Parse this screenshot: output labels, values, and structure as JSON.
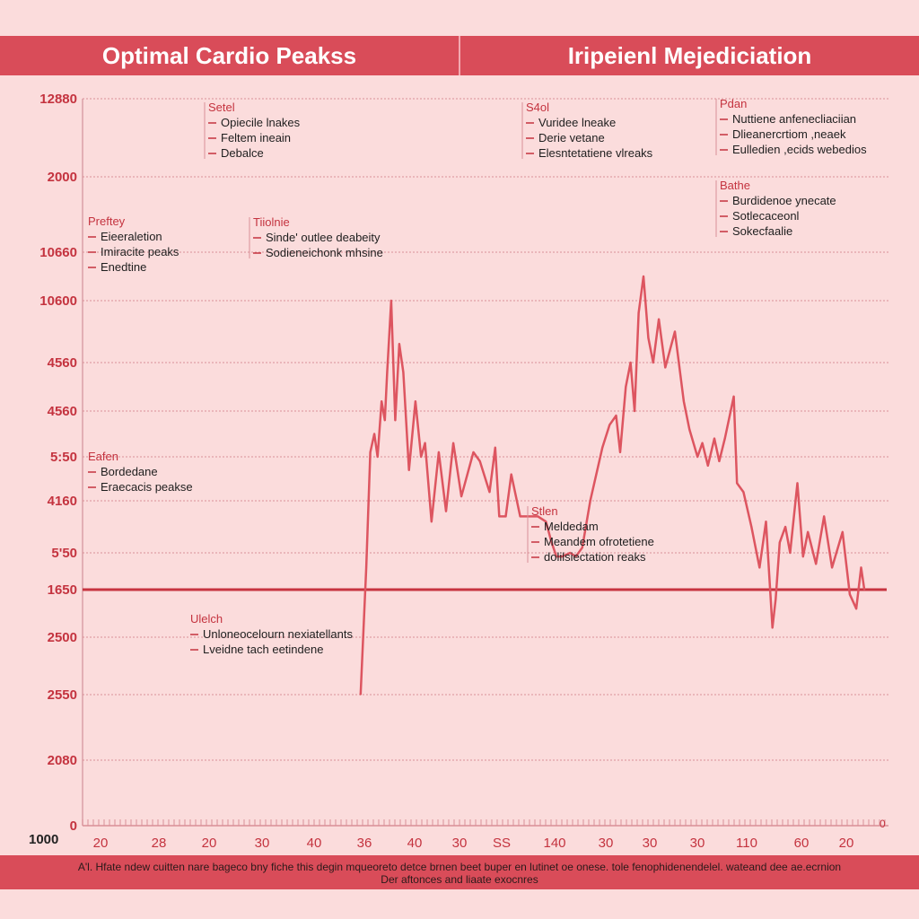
{
  "header": {
    "left_title": "Optimal Cardio Peakss",
    "right_title": "Iripeienl Mejediciation"
  },
  "footer": {
    "line1": "A'l. Hfate ndew cuitten nare bageco bny fiche this degin mqueoreto detce brnen beet buper en lutinet oe onese. tole fenophidenendelel. wateand dee ae.ecrnion",
    "line2": "Der aftonces and liaate exocnres"
  },
  "chart_data": {
    "type": "line",
    "title": "Optimal Cardio Peakss",
    "xlabel": "",
    "ylabel": "",
    "grid": true,
    "y_tick_labels": [
      "12880",
      "2000",
      "10660",
      "10600",
      "4560",
      "4560",
      "5:50",
      "4160",
      "5'50",
      "1650",
      "2500",
      "2550",
      "2080",
      "0"
    ],
    "x_tick_labels": [
      "20",
      "28",
      "20",
      "30",
      "40",
      "36",
      "40",
      "30",
      "SS",
      "140",
      "30",
      "30",
      "30",
      "110",
      "60",
      "20"
    ],
    "corner_label": "1000",
    "corner_label_right": "0",
    "y_index_range": [
      0,
      13
    ],
    "x_range": [
      0,
      100
    ],
    "reference_line_index": 9,
    "series": [
      {
        "color": "#dd5560",
        "points": [
          [
            34.5,
            11.0
          ],
          [
            35.2,
            8.4
          ],
          [
            35.7,
            5.9
          ],
          [
            36.2,
            5.5
          ],
          [
            36.6,
            6.0
          ],
          [
            37.1,
            4.8
          ],
          [
            37.5,
            5.2
          ],
          [
            37.8,
            4.2
          ],
          [
            38.3,
            3.0
          ],
          [
            38.8,
            5.2
          ],
          [
            39.3,
            3.7
          ],
          [
            39.8,
            4.2
          ],
          [
            40.5,
            6.3
          ],
          [
            41.3,
            4.8
          ],
          [
            42.0,
            6.0
          ],
          [
            42.5,
            5.7
          ],
          [
            43.3,
            7.4
          ],
          [
            44.2,
            5.9
          ],
          [
            45.1,
            7.2
          ],
          [
            46.0,
            5.7
          ],
          [
            47.0,
            6.9
          ],
          [
            48.5,
            5.9
          ],
          [
            49.3,
            6.1
          ],
          [
            50.5,
            6.8
          ],
          [
            51.2,
            5.8
          ],
          [
            51.7,
            7.3
          ],
          [
            52.5,
            7.3
          ],
          [
            53.2,
            6.4
          ],
          [
            54.3,
            7.3
          ],
          [
            55.5,
            7.3
          ],
          [
            56.5,
            7.3
          ],
          [
            57.5,
            7.4
          ],
          [
            58.2,
            7.8
          ],
          [
            58.8,
            8.1
          ],
          [
            59.5,
            8.1
          ],
          [
            60.5,
            8.0
          ],
          [
            61.2,
            8.1
          ],
          [
            62.0,
            7.9
          ],
          [
            63.0,
            7.0
          ],
          [
            64.5,
            5.8
          ],
          [
            65.4,
            5.3
          ],
          [
            66.2,
            5.1
          ],
          [
            66.7,
            5.9
          ],
          [
            67.4,
            4.5
          ],
          [
            68.0,
            4.0
          ],
          [
            68.5,
            5.0
          ],
          [
            69.0,
            3.2
          ],
          [
            69.6,
            2.5
          ],
          [
            70.2,
            3.6
          ],
          [
            70.8,
            4.0
          ],
          [
            71.5,
            3.3
          ],
          [
            72.3,
            4.1
          ],
          [
            73.5,
            3.5
          ],
          [
            74.6,
            4.8
          ],
          [
            75.3,
            5.4
          ],
          [
            76.3,
            6.0
          ],
          [
            76.9,
            5.7
          ],
          [
            77.6,
            6.2
          ],
          [
            78.4,
            5.6
          ],
          [
            79.0,
            6.1
          ],
          [
            79.7,
            5.6
          ],
          [
            80.8,
            4.7
          ],
          [
            81.2,
            6.6
          ],
          [
            82.0,
            6.8
          ],
          [
            83.0,
            7.5
          ],
          [
            84.0,
            8.4
          ],
          [
            84.8,
            7.4
          ],
          [
            85.6,
            9.8
          ],
          [
            86.0,
            9.2
          ],
          [
            86.5,
            7.8
          ],
          [
            87.2,
            7.5
          ],
          [
            87.8,
            8.0
          ],
          [
            88.7,
            6.6
          ],
          [
            89.4,
            8.1
          ],
          [
            90.0,
            7.6
          ],
          [
            91.0,
            8.3
          ],
          [
            92.0,
            7.3
          ],
          [
            93.0,
            8.4
          ],
          [
            94.3,
            7.6
          ],
          [
            95.2,
            9.1
          ],
          [
            96.0,
            9.4
          ],
          [
            96.6,
            8.4
          ],
          [
            97.0,
            9.0
          ]
        ]
      }
    ],
    "annotations": [
      {
        "header": "Setel",
        "items": [
          "Opiecile lnakes",
          "Feltem ineain",
          "Debalce"
        ]
      },
      {
        "header": "S4ol",
        "items": [
          "Vuridee lneake",
          "Derie vetane",
          "Elesntetatiene vlreaks"
        ]
      },
      {
        "header": "Pdan",
        "items": [
          "Nuttiene anfenecliaciian",
          "Dlieanercrtiom ,neaek",
          "Eulledien ,ecids webedios"
        ]
      },
      {
        "header": "Bathe",
        "items": [
          "Burdidenoe ynecate",
          "Sotlecaceonl",
          "Sokecfaalie"
        ]
      },
      {
        "header": "Preftey",
        "items": [
          "Eieeraletion",
          "Imiracite peaks",
          "Enedtine"
        ]
      },
      {
        "header": "Tiiolnie",
        "items": [
          "Sinde' outlee deabeity",
          "Sodieneichonk mhsine"
        ]
      },
      {
        "header": "Eafen",
        "items": [
          "Bordedane",
          "Eraecacis peakse"
        ]
      },
      {
        "header": "Stlen",
        "items": [
          "Meldedam",
          "Meandem ofrotetiene",
          "dolilsiectation reaks"
        ]
      },
      {
        "header": "Ulelch",
        "items": [
          "Unloneocelourn nexiatellants",
          "Lveidne tach eetindene"
        ]
      }
    ]
  }
}
